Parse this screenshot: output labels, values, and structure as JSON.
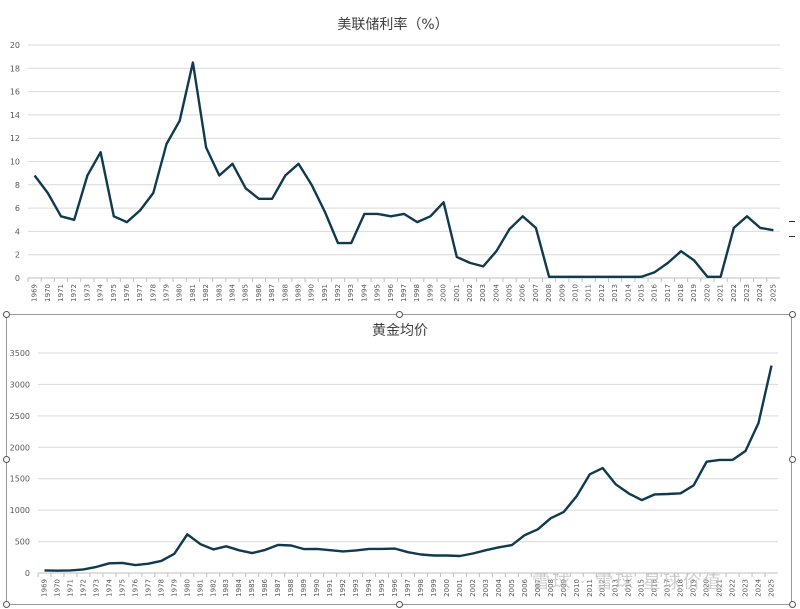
{
  "chart_data": [
    {
      "type": "line",
      "title": "美联储利率（%）",
      "xlabel": "",
      "ylabel": "",
      "ylim": [
        0,
        20
      ],
      "yticks": [
        0,
        2,
        4,
        6,
        8,
        10,
        12,
        14,
        16,
        18,
        20
      ],
      "grid": true,
      "color": "#0f3a4f",
      "categories": [
        "1969",
        "1970",
        "1971",
        "1972",
        "1973",
        "1974",
        "1975",
        "1976",
        "1977",
        "1978",
        "1979",
        "1980",
        "1981",
        "1982",
        "1983",
        "1984",
        "1985",
        "1986",
        "1987",
        "1988",
        "1989",
        "1990",
        "1991",
        "1992",
        "1993",
        "1994",
        "1995",
        "1996",
        "1997",
        "1998",
        "1999",
        "2000",
        "2001",
        "2002",
        "2003",
        "2004",
        "2005",
        "2006",
        "2007",
        "2008",
        "2009",
        "2010",
        "2011",
        "2012",
        "2013",
        "2014",
        "2015",
        "2016",
        "2017",
        "2018",
        "2019",
        "2020",
        "2021",
        "2022",
        "2023",
        "2024",
        "2025"
      ],
      "values": [
        8.8,
        7.3,
        5.3,
        5.0,
        8.8,
        10.8,
        5.3,
        4.8,
        5.8,
        7.3,
        11.5,
        13.5,
        18.5,
        11.2,
        8.8,
        9.8,
        7.7,
        6.8,
        6.8,
        8.8,
        9.8,
        8.0,
        5.7,
        3.0,
        3.0,
        5.5,
        5.5,
        5.3,
        5.5,
        4.8,
        5.3,
        6.5,
        1.8,
        1.3,
        1.0,
        2.3,
        4.2,
        5.3,
        4.3,
        0.1,
        0.1,
        0.1,
        0.1,
        0.1,
        0.1,
        0.1,
        0.1,
        0.5,
        1.3,
        2.3,
        1.5,
        0.1,
        0.1,
        4.3,
        5.3,
        4.3,
        4.1
      ]
    },
    {
      "type": "line",
      "title": "黄金均价",
      "xlabel": "",
      "ylabel": "",
      "ylim": [
        0,
        3500
      ],
      "yticks": [
        0,
        500,
        1000,
        1500,
        2000,
        2500,
        3000,
        3500
      ],
      "grid": true,
      "color": "#0f3a4f",
      "categories": [
        "1969",
        "1970",
        "1971",
        "1972",
        "1973",
        "1974",
        "1975",
        "1976",
        "1977",
        "1978",
        "1979",
        "1980",
        "1981",
        "1982",
        "1983",
        "1984",
        "1985",
        "1986",
        "1987",
        "1988",
        "1989",
        "1990",
        "1991",
        "1992",
        "1993",
        "1994",
        "1995",
        "1996",
        "1997",
        "1998",
        "1999",
        "2000",
        "2001",
        "2002",
        "2003",
        "2004",
        "2005",
        "2006",
        "2007",
        "2008",
        "2009",
        "2010",
        "2011",
        "2012",
        "2013",
        "2014",
        "2015",
        "2016",
        "2017",
        "2018",
        "2019",
        "2020",
        "2021",
        "2022",
        "2023",
        "2024",
        "2025"
      ],
      "values": [
        41,
        36,
        41,
        58,
        97,
        154,
        161,
        125,
        148,
        193,
        306,
        615,
        460,
        376,
        424,
        361,
        317,
        368,
        447,
        437,
        381,
        383,
        362,
        344,
        360,
        384,
        384,
        388,
        331,
        294,
        279,
        279,
        271,
        310,
        363,
        409,
        444,
        603,
        695,
        872,
        972,
        1225,
        1571,
        1669,
        1411,
        1266,
        1160,
        1251,
        1257,
        1268,
        1393,
        1770,
        1799,
        1800,
        1941,
        2386,
        3300
      ]
    }
  ],
  "watermark": "雪球 · 雪球·星球价值"
}
